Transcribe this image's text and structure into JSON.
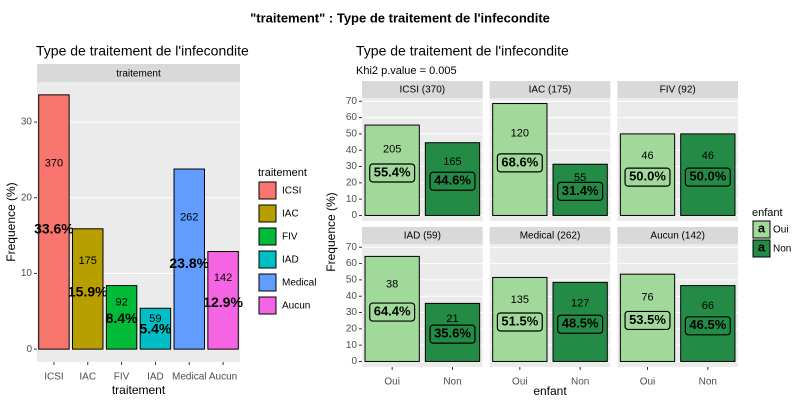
{
  "title": "\"traitement\" : Type de traitement de l'infecondite",
  "chart_data": [
    {
      "type": "bar",
      "title": "Type de traitement de l'infecondite",
      "strip": "traitement",
      "xlabel": "traitement",
      "ylabel": "Frequence (%)",
      "categories": [
        "ICSI",
        "IAC",
        "FIV",
        "IAD",
        "Medical",
        "Aucun"
      ],
      "values": [
        33.6,
        15.9,
        8.4,
        5.4,
        23.8,
        12.9
      ],
      "value_labels": [
        "33.6%",
        "15.9%",
        "8.4%",
        "5.4%",
        "23.8%",
        "12.9%"
      ],
      "counts": [
        370,
        175,
        92,
        59,
        262,
        142
      ],
      "colors": [
        "#f8766d",
        "#b79f00",
        "#00ba38",
        "#00bfc4",
        "#619cff",
        "#f564e3"
      ],
      "ylim": [
        -1.7,
        35.3
      ],
      "yticks": [
        0,
        10,
        20,
        30
      ],
      "grid": true,
      "legend_title": "traitement",
      "legend_position": "right"
    },
    {
      "type": "bar",
      "title": "Type de traitement de l'infecondite",
      "subtitle": "Khi2 p.value = 0.005",
      "xlabel": "enfant",
      "ylabel": "Frequence (%)",
      "categories": [
        "Oui",
        "Non"
      ],
      "colors": [
        "#a1d99b",
        "#238b45"
      ],
      "facets": [
        {
          "label": "ICSI (370)",
          "values": [
            55.4,
            44.6
          ],
          "value_labels": [
            "55.4%",
            "44.6%"
          ],
          "counts": [
            205,
            165
          ]
        },
        {
          "label": "IAC (175)",
          "values": [
            68.6,
            31.4
          ],
          "value_labels": [
            "68.6%",
            "31.4%"
          ],
          "counts": [
            120,
            55
          ]
        },
        {
          "label": "FIV (92)",
          "values": [
            50.0,
            50.0
          ],
          "value_labels": [
            "50.0%",
            "50.0%"
          ],
          "counts": [
            46,
            46
          ]
        },
        {
          "label": "IAD (59)",
          "values": [
            64.4,
            35.6
          ],
          "value_labels": [
            "64.4%",
            "35.6%"
          ],
          "counts": [
            38,
            21
          ]
        },
        {
          "label": "Medical (262)",
          "values": [
            51.5,
            48.5
          ],
          "value_labels": [
            "51.5%",
            "48.5%"
          ],
          "counts": [
            135,
            127
          ]
        },
        {
          "label": "Aucun (142)",
          "values": [
            53.5,
            46.5
          ],
          "value_labels": [
            "53.5%",
            "46.5%"
          ],
          "counts": [
            76,
            66
          ]
        }
      ],
      "ylim": [
        -3.4,
        72.0
      ],
      "yticks": [
        0,
        10,
        20,
        30,
        40,
        50,
        60,
        70
      ],
      "grid": true,
      "legend_title": "enfant",
      "legend_key_text": "a",
      "legend_position": "right"
    }
  ]
}
